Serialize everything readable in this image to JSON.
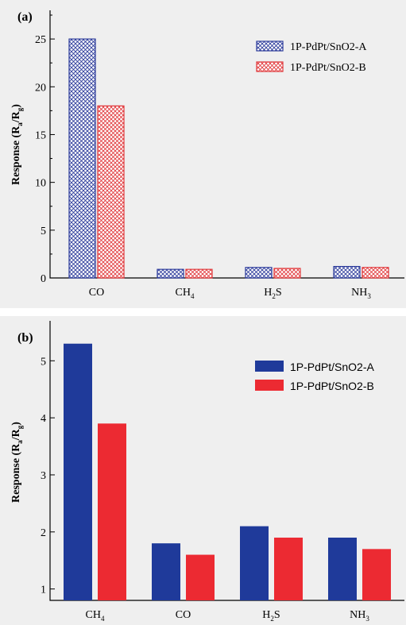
{
  "chart_data": [
    {
      "panel": "(a)",
      "type": "bar",
      "categories": [
        "CO",
        "CH4",
        "H2S",
        "NH3"
      ],
      "category_labels": [
        {
          "base": "CO",
          "sub": ""
        },
        {
          "base": "CH",
          "sub": "4"
        },
        {
          "base": "H",
          "sub": "2",
          "tail": "S"
        },
        {
          "base": "NH",
          "sub": "3"
        }
      ],
      "series": [
        {
          "name": "1P-PdPt/SnO2-A",
          "values": [
            25,
            0.9,
            1.1,
            1.2
          ],
          "color": "#2b3a9a",
          "pattern": "crosshatch"
        },
        {
          "name": "1P-PdPt/SnO2-B",
          "values": [
            18,
            0.9,
            1.0,
            1.1
          ],
          "color": "#e0383b",
          "pattern": "crosshatch"
        }
      ],
      "ylabel": "Response (Ra/Rg)",
      "ylim": [
        0,
        28
      ],
      "yticks": [
        0,
        5,
        10,
        15,
        20,
        25
      ],
      "legend": "top-right"
    },
    {
      "panel": "(b)",
      "type": "bar",
      "categories": [
        "CH4",
        "CO",
        "H2S",
        "NH3"
      ],
      "category_labels": [
        {
          "base": "CH",
          "sub": "4"
        },
        {
          "base": "CO",
          "sub": ""
        },
        {
          "base": "H",
          "sub": "2",
          "tail": "S"
        },
        {
          "base": "NH",
          "sub": "3"
        }
      ],
      "series": [
        {
          "name": "1P-PdPt/SnO2-A",
          "values": [
            5.3,
            1.8,
            2.1,
            1.9
          ],
          "color": "#1f3a9a",
          "pattern": "solid"
        },
        {
          "name": "1P-PdPt/SnO2-B",
          "values": [
            3.9,
            1.6,
            1.9,
            1.7
          ],
          "color": "#ec2a32",
          "pattern": "solid"
        }
      ],
      "ylabel": "Response (Ra/Rg)",
      "ylim": [
        0.8,
        5.7
      ],
      "yticks": [
        1,
        2,
        3,
        4,
        5
      ],
      "legend": "top-right"
    }
  ]
}
